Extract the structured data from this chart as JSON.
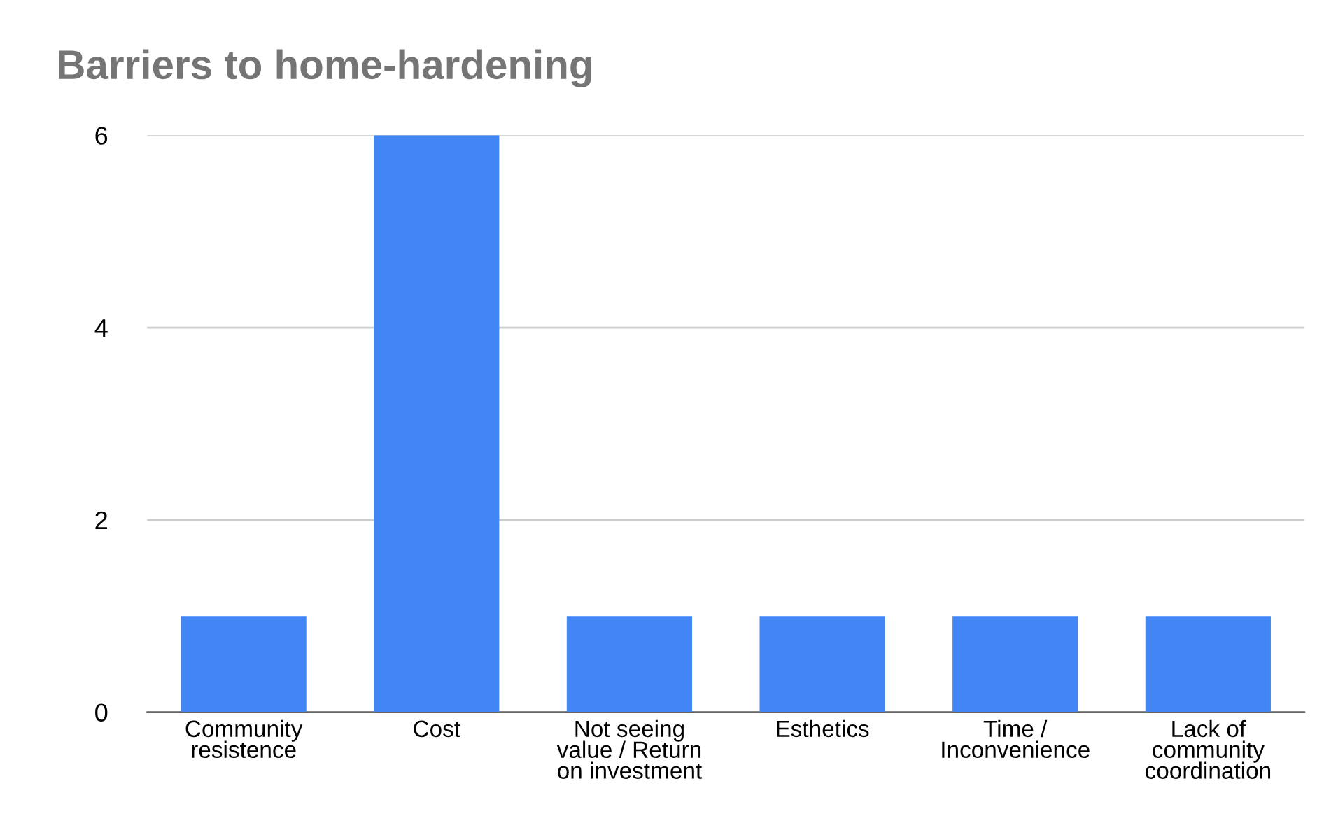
{
  "chart_data": {
    "type": "bar",
    "title": "Barriers to home-hardening",
    "categories": [
      "Community\nresistence",
      "Cost",
      "Not seeing\nvalue / Return\non investment",
      "Esthetics",
      "Time /\nInconvenience",
      "Lack of\ncommunity\ncoordination"
    ],
    "values": [
      1,
      6,
      1,
      1,
      1,
      1
    ],
    "color": "#4285f4",
    "ylim": [
      0,
      6
    ],
    "yticks": [
      0,
      2,
      4,
      6
    ],
    "grid": "y",
    "legend": false
  }
}
